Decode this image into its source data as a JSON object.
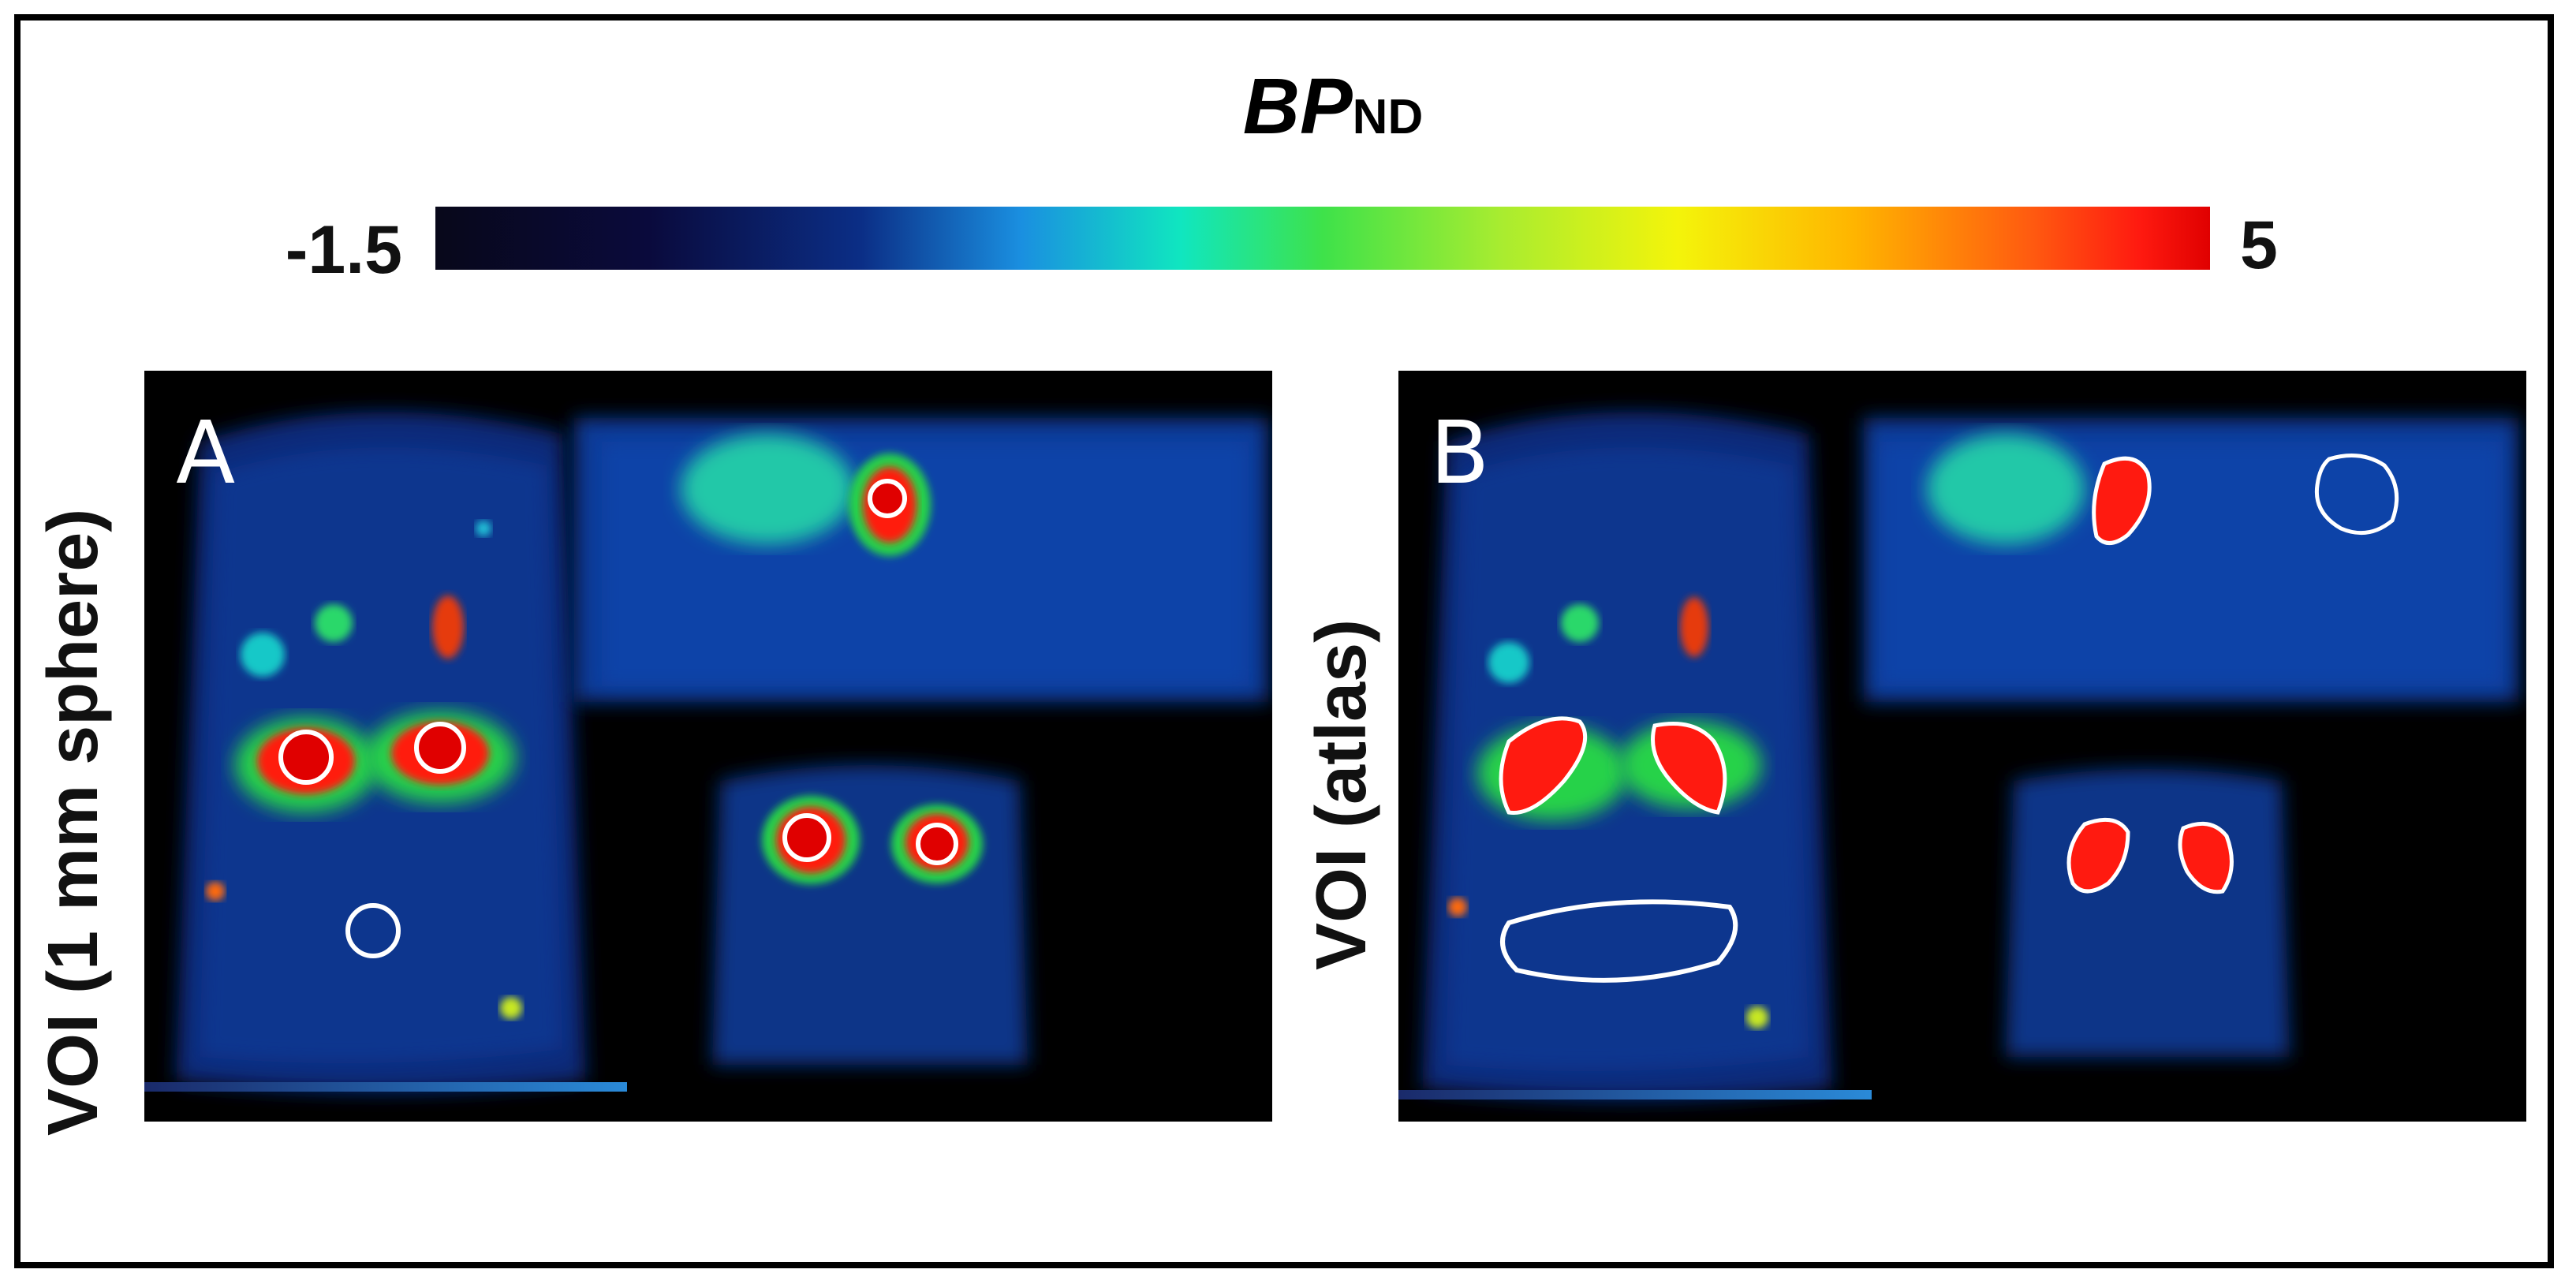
{
  "colorbar": {
    "title_main": "BP",
    "title_sub": "ND",
    "min_label": "-1.5",
    "max_label": "5",
    "colormap": [
      "#08081a",
      "#0b2e86",
      "#1a8fe0",
      "#10e6c0",
      "#3ee24a",
      "#f4f40a",
      "#ffb400",
      "#ff1a10",
      "#e00000"
    ]
  },
  "panels": [
    {
      "letter": "A",
      "side_label": "VOI (1 mm sphere)"
    },
    {
      "letter": "B",
      "side_label": "VOI (atlas)"
    }
  ],
  "colors": {
    "hot": "#ff1a10",
    "voi_outline": "#ffffff",
    "background": "#000000"
  }
}
